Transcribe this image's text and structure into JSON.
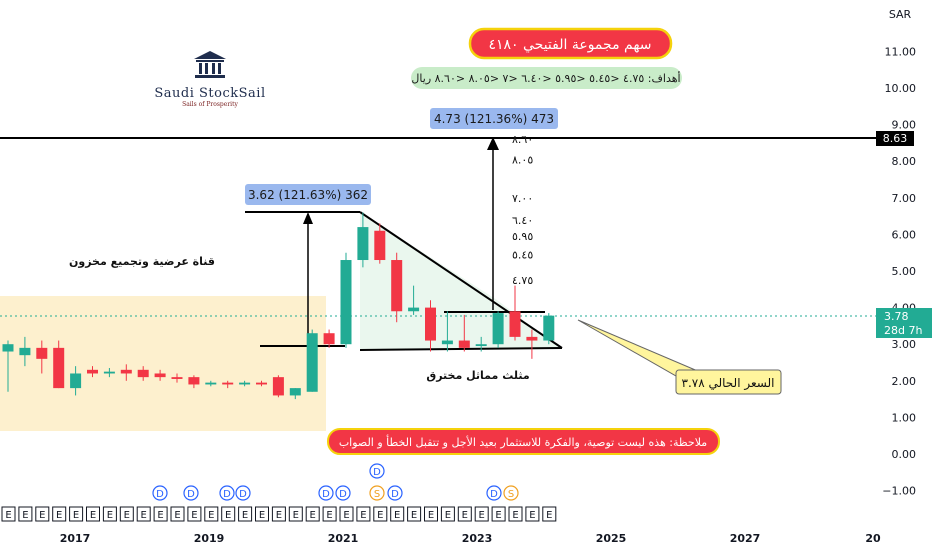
{
  "currency": "SAR",
  "logo": {
    "brand": "Saudi StockSail",
    "tagline": "Sails of Prosperity"
  },
  "title": "سهم مجموعة الفتيحي ٤١٨٠",
  "targets_label": "أهداف: ٤.٧٥ <٥.٤٥ <٥.٩٥ <٦.٤٠ <٧ <٨.٠٥ <٨.٦٠ ريال",
  "note": "ملاحظة: هذه ليست توصية، والفكرة للاستثمار بعيد الأجل و تتقبل  الخطأ و الصواب",
  "current_price_callout": "السعر الحالي ٣.٧٨",
  "channel_label": "قناة عرضية وتجميع مخزون",
  "triangle_label": "مثلث مماثل مخترق",
  "measure_1": "3.62 (121.63%) 362",
  "measure_2": "4.73 (121.36%) 473",
  "target_levels": [
    "٨.٦٠",
    "٨.٠٥",
    "٧.٠٠",
    "٦.٤٠",
    "٥.٩٥",
    "٥.٤٥",
    "٤.٧٥"
  ],
  "price_tag": {
    "value": "3.78",
    "countdown": "28d 7h"
  },
  "level_tag": "8.63",
  "colors": {
    "up": "#22ab94",
    "down": "#f23645",
    "channel": "#fdeec9",
    "triangle": "#eaf7ee",
    "title_bg": "#f23645",
    "title_border": "#f5d20c",
    "targets_bg": "#c9ecc9",
    "measure_bg": "#9ab8ee",
    "callout_bg": "#fff59d",
    "price_tag": "#22ab94"
  },
  "chart_data": {
    "type": "candlestick",
    "interval": "quarterly",
    "y_axis": {
      "ticks": [
        -1.0,
        0.0,
        1.0,
        2.0,
        3.0,
        4.0,
        5.0,
        6.0,
        7.0,
        8.0,
        9.0,
        10.0,
        11.0
      ],
      "tick_labels": [
        "−1.00",
        "0.00",
        "1.00",
        "2.00",
        "3.00",
        "4.00",
        "5.00",
        "6.00",
        "7.00",
        "8.00",
        "9.00",
        "10.00",
        "11.00"
      ],
      "range": [
        -1.6,
        11.8
      ]
    },
    "x_axis": {
      "ticks": [
        "2017",
        "2019",
        "2021",
        "2023",
        "2025",
        "2027",
        "20"
      ]
    },
    "candles": [
      {
        "t": "2016Q1",
        "o": 2.8,
        "h": 3.1,
        "l": 1.7,
        "c": 3.0
      },
      {
        "t": "2016Q2",
        "o": 2.7,
        "h": 3.2,
        "l": 2.4,
        "c": 2.9
      },
      {
        "t": "2016Q3",
        "o": 2.9,
        "h": 3.1,
        "l": 2.2,
        "c": 2.6
      },
      {
        "t": "2016Q4",
        "o": 2.9,
        "h": 3.1,
        "l": 1.8,
        "c": 1.8
      },
      {
        "t": "2017Q1",
        "o": 1.8,
        "h": 2.4,
        "l": 1.6,
        "c": 2.2
      },
      {
        "t": "2017Q2",
        "o": 2.3,
        "h": 2.4,
        "l": 2.1,
        "c": 2.2
      },
      {
        "t": "2017Q3",
        "o": 2.2,
        "h": 2.35,
        "l": 2.1,
        "c": 2.25
      },
      {
        "t": "2017Q4",
        "o": 2.3,
        "h": 2.45,
        "l": 2.0,
        "c": 2.2
      },
      {
        "t": "2018Q1",
        "o": 2.3,
        "h": 2.4,
        "l": 2.0,
        "c": 2.1
      },
      {
        "t": "2018Q2",
        "o": 2.2,
        "h": 2.3,
        "l": 2.0,
        "c": 2.1
      },
      {
        "t": "2018Q3",
        "o": 2.1,
        "h": 2.2,
        "l": 1.95,
        "c": 2.05
      },
      {
        "t": "2018Q4",
        "o": 2.1,
        "h": 2.15,
        "l": 1.8,
        "c": 1.9
      },
      {
        "t": "2019Q1",
        "o": 1.9,
        "h": 2.0,
        "l": 1.85,
        "c": 1.95
      },
      {
        "t": "2019Q2",
        "o": 1.95,
        "h": 2.0,
        "l": 1.8,
        "c": 1.9
      },
      {
        "t": "2019Q3",
        "o": 1.9,
        "h": 2.0,
        "l": 1.85,
        "c": 1.95
      },
      {
        "t": "2019Q4",
        "o": 1.95,
        "h": 2.0,
        "l": 1.85,
        "c": 1.9
      },
      {
        "t": "2020Q1",
        "o": 2.1,
        "h": 2.15,
        "l": 1.55,
        "c": 1.6
      },
      {
        "t": "2020Q2",
        "o": 1.6,
        "h": 1.8,
        "l": 1.5,
        "c": 1.8
      },
      {
        "t": "2020Q3",
        "o": 1.7,
        "h": 3.4,
        "l": 1.7,
        "c": 3.3
      },
      {
        "t": "2020Q4",
        "o": 3.3,
        "h": 3.4,
        "l": 2.9,
        "c": 3.0
      },
      {
        "t": "2021Q1",
        "o": 3.0,
        "h": 5.5,
        "l": 2.9,
        "c": 5.3
      },
      {
        "t": "2021Q2",
        "o": 5.3,
        "h": 6.6,
        "l": 5.1,
        "c": 6.2
      },
      {
        "t": "2021Q3",
        "o": 6.1,
        "h": 6.3,
        "l": 5.2,
        "c": 5.3
      },
      {
        "t": "2021Q4",
        "o": 5.3,
        "h": 5.5,
        "l": 3.6,
        "c": 3.9
      },
      {
        "t": "2022Q1",
        "o": 3.9,
        "h": 4.6,
        "l": 3.8,
        "c": 4.0
      },
      {
        "t": "2022Q2",
        "o": 4.0,
        "h": 4.2,
        "l": 2.8,
        "c": 3.1
      },
      {
        "t": "2022Q3",
        "o": 3.0,
        "h": 3.9,
        "l": 2.8,
        "c": 3.1
      },
      {
        "t": "2022Q4",
        "o": 3.1,
        "h": 3.8,
        "l": 2.8,
        "c": 2.9
      },
      {
        "t": "2023Q1",
        "o": 2.95,
        "h": 3.2,
        "l": 2.8,
        "c": 3.0
      },
      {
        "t": "2023Q2",
        "o": 3.0,
        "h": 3.9,
        "l": 2.9,
        "c": 3.85
      },
      {
        "t": "2023Q3",
        "o": 3.9,
        "h": 4.6,
        "l": 3.1,
        "c": 3.2
      },
      {
        "t": "2023Q4",
        "o": 3.2,
        "h": 3.4,
        "l": 2.6,
        "c": 3.1
      },
      {
        "t": "2024Q1",
        "o": 3.1,
        "h": 3.85,
        "l": 3.0,
        "c": 3.78
      }
    ],
    "levels": {
      "resistance": 8.63,
      "current": 3.78
    },
    "event_markers": {
      "dividends": 8,
      "splits": 2,
      "earnings": 33
    }
  }
}
